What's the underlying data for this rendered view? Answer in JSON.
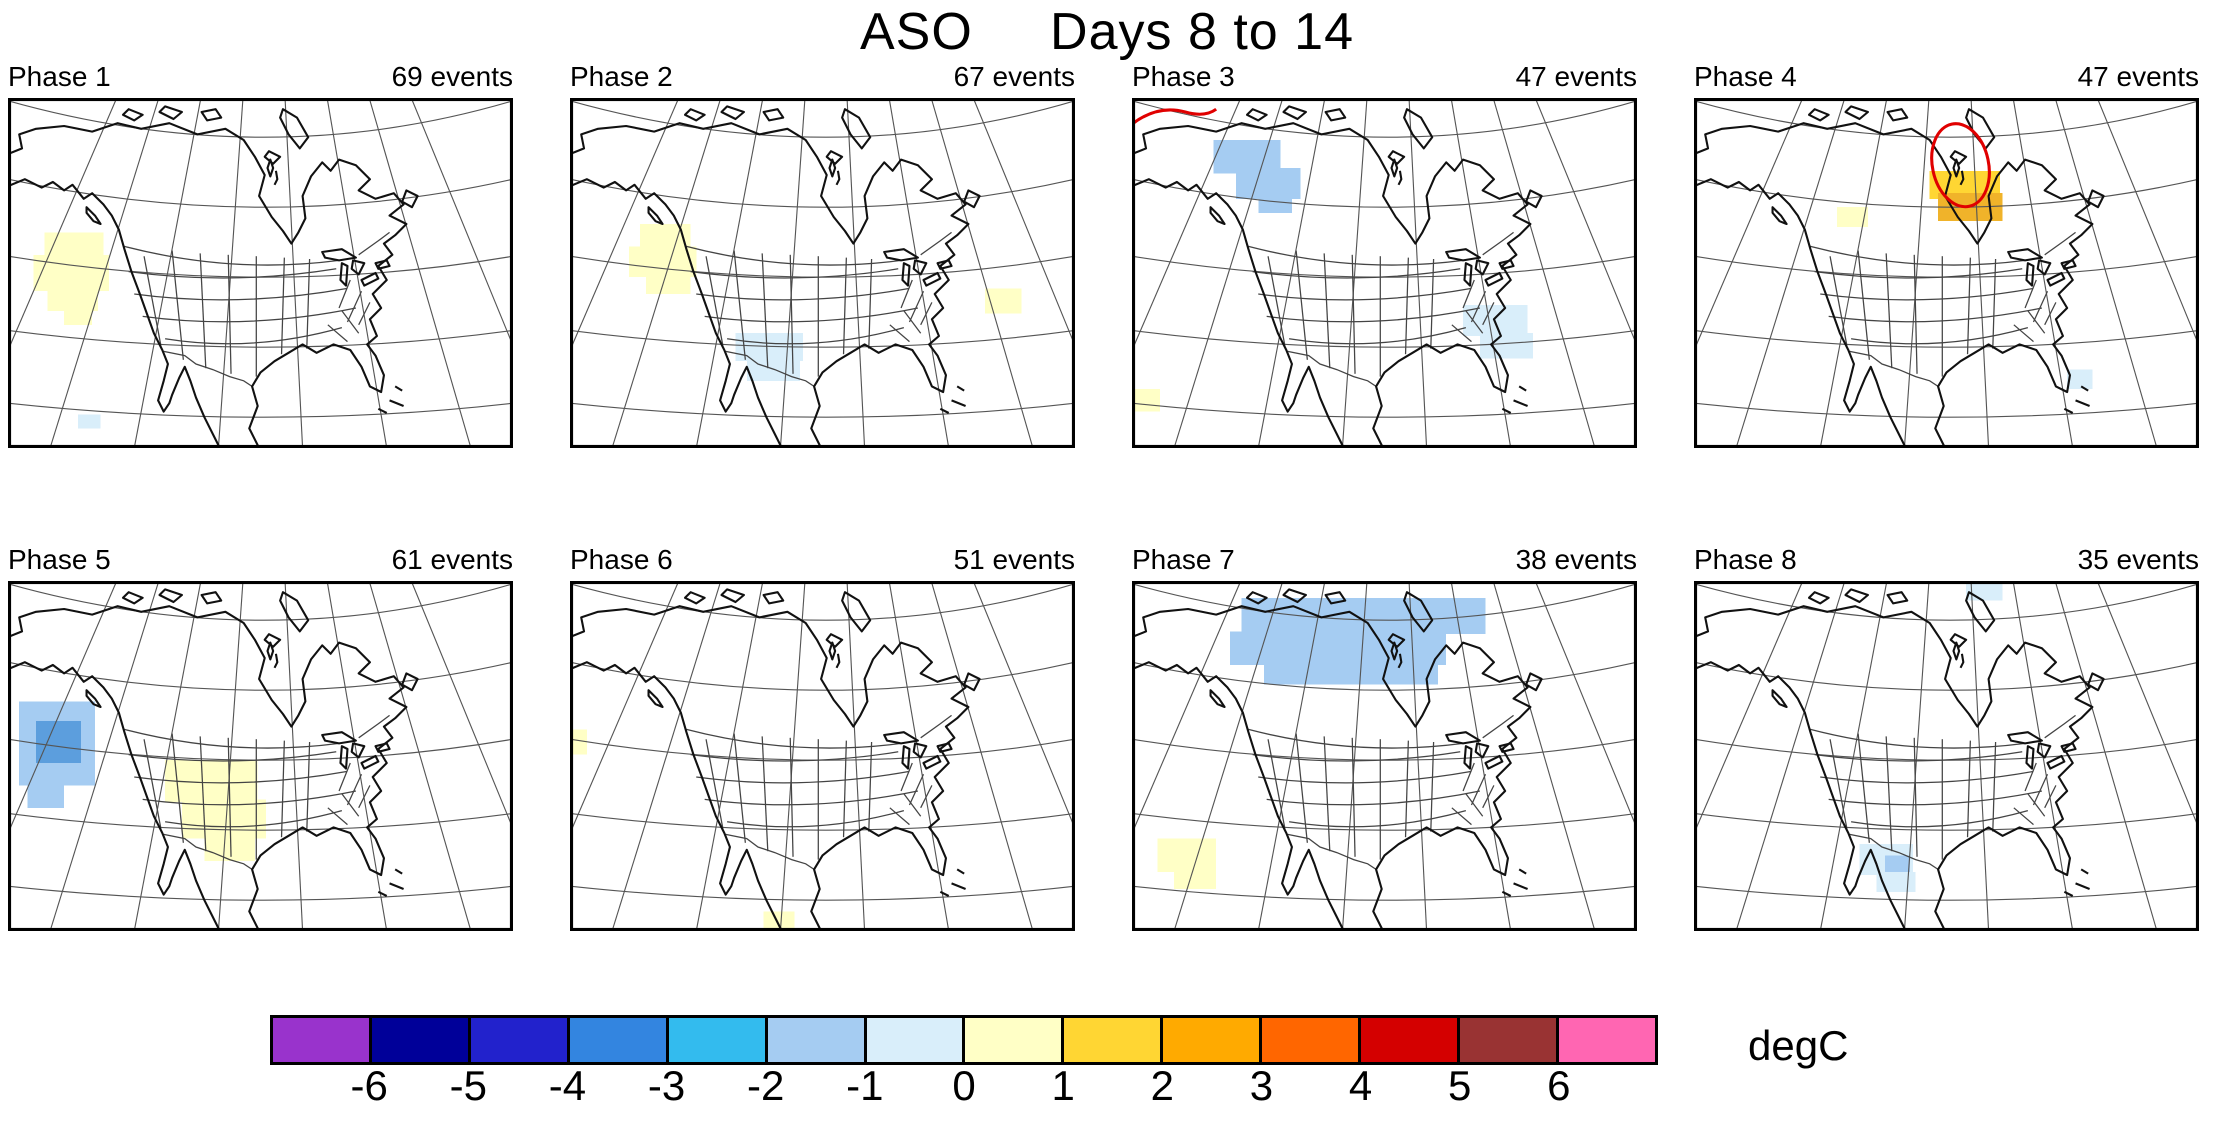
{
  "title": "ASO     Days 8 to 14",
  "panels": [
    {
      "id": "phase-1",
      "label": "Phase 1",
      "events": "69 events",
      "patches": [
        {
          "color": "#FFFFC6",
          "cells": [
            [
              26,
              96,
              42,
              22
            ],
            [
              18,
              112,
              54,
              26
            ],
            [
              28,
              134,
              36,
              18
            ],
            [
              40,
              152,
              20,
              10
            ]
          ]
        },
        {
          "color": "#D9EEFA",
          "cells": [
            [
              50,
              226,
              16,
              10
            ]
          ]
        }
      ]
    },
    {
      "id": "phase-2",
      "label": "Phase 2",
      "events": "67 events",
      "patches": [
        {
          "color": "#FFFFC6",
          "cells": [
            [
              50,
              90,
              36,
              20
            ],
            [
              42,
              106,
              48,
              22
            ],
            [
              54,
              126,
              32,
              14
            ]
          ]
        },
        {
          "color": "#D9EEFA",
          "cells": [
            [
              118,
              168,
              48,
              20
            ],
            [
              126,
              186,
              38,
              16
            ]
          ]
        },
        {
          "color": "#FFFFC6",
          "cells": [
            [
              296,
              136,
              26,
              18
            ]
          ]
        }
      ]
    },
    {
      "id": "phase-3",
      "label": "Phase 3",
      "events": "47 events",
      "annotation": "red-arc",
      "patches": [
        {
          "color": "#A5CCF2",
          "cells": [
            [
              58,
              30,
              48,
              24
            ],
            [
              74,
              50,
              46,
              22
            ],
            [
              90,
              70,
              24,
              12
            ]
          ]
        },
        {
          "color": "#D9EEFA",
          "cells": [
            [
              236,
              148,
              46,
              22
            ],
            [
              248,
              168,
              38,
              18
            ]
          ]
        },
        {
          "color": "#FFFFC6",
          "cells": [
            [
              0,
              208,
              20,
              16
            ]
          ]
        }
      ]
    },
    {
      "id": "phase-4",
      "label": "Phase 4",
      "events": "47 events",
      "annotation": "red-ellipse",
      "patches": [
        {
          "color": "#FFD633",
          "cells": [
            [
              168,
              52,
              50,
              20
            ]
          ]
        },
        {
          "color": "#F0B32A",
          "cells": [
            [
              174,
              68,
              46,
              20
            ]
          ]
        },
        {
          "color": "#FFFFC6",
          "cells": [
            [
              102,
              78,
              22,
              14
            ]
          ]
        },
        {
          "color": "#D9EEFA",
          "cells": [
            [
              266,
              194,
              18,
              14
            ]
          ]
        }
      ]
    },
    {
      "id": "phase-5",
      "label": "Phase 5",
      "events": "61 events",
      "patches": [
        {
          "color": "#A5CCF2",
          "cells": [
            [
              8,
              86,
              54,
              60
            ],
            [
              14,
              144,
              26,
              18
            ]
          ]
        },
        {
          "color": "#5C9EDD",
          "cells": [
            [
              20,
              100,
              32,
              30
            ]
          ]
        },
        {
          "color": "#FFFFC6",
          "cells": [
            [
              112,
              128,
              66,
              30
            ],
            [
              124,
              156,
              60,
              28
            ],
            [
              140,
              182,
              36,
              18
            ]
          ]
        }
      ]
    },
    {
      "id": "phase-6",
      "label": "Phase 6",
      "events": "51 events",
      "patches": [
        {
          "color": "#FFFFC6",
          "cells": [
            [
              0,
              106,
              12,
              18
            ]
          ]
        },
        {
          "color": "#FFFFC6",
          "cells": [
            [
              138,
              236,
              22,
              12
            ]
          ]
        }
      ]
    },
    {
      "id": "phase-7",
      "label": "Phase 7",
      "events": "38 events",
      "patches": [
        {
          "color": "#A5CCF2",
          "cells": [
            [
              78,
              12,
              174,
              26
            ],
            [
              70,
              36,
              154,
              24
            ],
            [
              94,
              58,
              124,
              16
            ]
          ]
        },
        {
          "color": "#FFFFC6",
          "cells": [
            [
              18,
              184,
              42,
              24
            ],
            [
              30,
              206,
              30,
              14
            ]
          ]
        }
      ]
    },
    {
      "id": "phase-8",
      "label": "Phase 8",
      "events": "35 events",
      "patches": [
        {
          "color": "#D9EEFA",
          "cells": [
            [
              194,
              2,
              26,
              12
            ]
          ]
        },
        {
          "color": "#D9EEFA",
          "cells": [
            [
              118,
              188,
              38,
              22
            ],
            [
              130,
              208,
              28,
              14
            ]
          ]
        },
        {
          "color": "#A5CCF2",
          "cells": [
            [
              136,
              196,
              18,
              12
            ]
          ]
        }
      ]
    }
  ],
  "colorbar": {
    "colors": [
      "#9933CC",
      "#000099",
      "#2222CC",
      "#3385E0",
      "#33BBEE",
      "#A5CCF2",
      "#D9EEFA",
      "#FFFFC6",
      "#FFD633",
      "#FFAA00",
      "#FF6600",
      "#D40000",
      "#993333",
      "#FF66B2"
    ],
    "tick_labels": [
      "-6",
      "-5",
      "-4",
      "-3",
      "-2",
      "-1",
      "0",
      "1",
      "2",
      "3",
      "4",
      "5",
      "6"
    ],
    "units": "degC"
  },
  "chart_data": {
    "type": "heatmap",
    "title": "ASO     Days 8 to 14",
    "panel_labels": [
      "Phase 1",
      "Phase 2",
      "Phase 3",
      "Phase 4",
      "Phase 5",
      "Phase 6",
      "Phase 7",
      "Phase 8"
    ],
    "events_per_phase": [
      69,
      67,
      47,
      47,
      61,
      51,
      38,
      35
    ],
    "colorbar": {
      "ticks": [
        -6,
        -5,
        -4,
        -3,
        -2,
        -1,
        0,
        1,
        2,
        3,
        4,
        5,
        6
      ],
      "units": "degC",
      "bin_colors": [
        "#9933CC",
        "#000099",
        "#2222CC",
        "#3385E0",
        "#33BBEE",
        "#A5CCF2",
        "#D9EEFA",
        "#FFFFC6",
        "#FFD633",
        "#FFAA00",
        "#FF6600",
        "#D40000",
        "#993333",
        "#FF66B2"
      ]
    },
    "anomaly_regions": [
      {
        "phase": 1,
        "regions": [
          {
            "area": "US West Coast / eastern Pacific",
            "value_degC": "0 to 1"
          },
          {
            "area": "small spot lower-left coast",
            "value_degC": "-1 to 0"
          }
        ]
      },
      {
        "phase": 2,
        "regions": [
          {
            "area": "California / Oregon coast",
            "value_degC": "0 to 1"
          },
          {
            "area": "northern Mexico",
            "value_degC": "-1 to 0"
          },
          {
            "area": "western Atlantic (right of map)",
            "value_degC": "0 to 1"
          }
        ]
      },
      {
        "phase": 3,
        "regions": [
          {
            "area": "Alaska / Yukon (upper left)",
            "value_degC": "-2 to -1"
          },
          {
            "area": "southeast US coast / Atlantic",
            "value_degC": "-1 to 0"
          },
          {
            "area": "eastern Pacific (bottom left)",
            "value_degC": "0 to 1"
          }
        ],
        "annotation": "red contour fragment at top-left corner"
      },
      {
        "phase": 4,
        "regions": [
          {
            "area": "Hudson Bay / Ontario",
            "value_degC": "1 to 2"
          },
          {
            "area": "northern plains (small)",
            "value_degC": "0 to 1"
          },
          {
            "area": "western Atlantic (small)",
            "value_degC": "-1 to 0"
          }
        ],
        "annotation": "red ellipse circling Hudson Bay warm anomaly"
      },
      {
        "phase": 5,
        "regions": [
          {
            "area": "offshore California",
            "value_degC": "-3 to -1"
          },
          {
            "area": "Texas / southern plains",
            "value_degC": "0 to 1"
          }
        ]
      },
      {
        "phase": 6,
        "regions": [
          {
            "area": "eastern Pacific at left edge (tiny)",
            "value_degC": "0 to 1"
          },
          {
            "area": "southern Mexico (tiny)",
            "value_degC": "0 to 1"
          }
        ]
      },
      {
        "phase": 7,
        "regions": [
          {
            "area": "Nunavut / Hudson Bay region (large)",
            "value_degC": "-2 to -1"
          },
          {
            "area": "eastern Pacific (bottom left)",
            "value_degC": "0 to 1"
          }
        ]
      },
      {
        "phase": 8,
        "regions": [
          {
            "area": "Texas Gulf coast",
            "value_degC": "-2 to 0"
          },
          {
            "area": "Arctic at top edge (small)",
            "value_degC": "-1 to 0"
          }
        ]
      }
    ]
  }
}
